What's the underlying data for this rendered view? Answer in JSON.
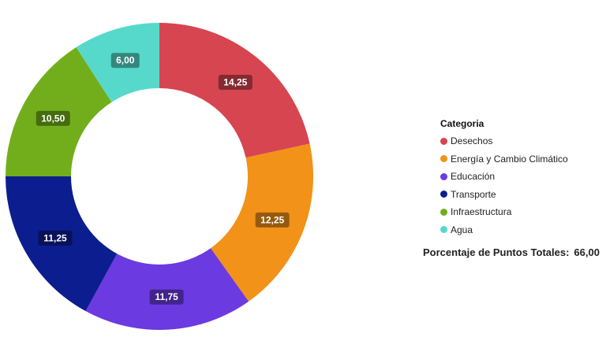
{
  "chart_data": {
    "type": "pie",
    "donut": true,
    "categories": [
      "Desechos",
      "Energía y Cambio Climático",
      "Educación",
      "Transporte",
      "Infraestructura",
      "Agua"
    ],
    "values": [
      14.25,
      12.25,
      11.75,
      11.25,
      10.5,
      6.0
    ],
    "value_labels": [
      "14,25",
      "12,25",
      "11,75",
      "11,25",
      "10,50",
      "6,00"
    ],
    "colors": [
      "#D64550",
      "#F29218",
      "#6B3AE0",
      "#0C1D8F",
      "#72AE1B",
      "#56D9CB"
    ],
    "legend_title": "Categoria",
    "legend_position": "right"
  },
  "summary": {
    "label": "Porcentaje de Puntos Totales:",
    "value": "66,00"
  }
}
